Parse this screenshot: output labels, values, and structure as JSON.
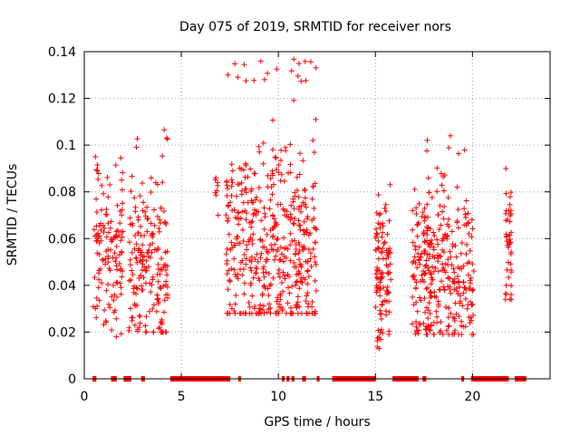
{
  "chart_data": {
    "type": "scatter",
    "title": "Day 075 of 2019, SRMTID for receiver nors",
    "xlabel": "GPS time / hours",
    "ylabel": "SRMTID / TECUs",
    "xlim": [
      0,
      24
    ],
    "ylim": [
      0,
      0.14
    ],
    "xticks": [
      0,
      5,
      10,
      15,
      20
    ],
    "xtick_labels": [
      "0",
      "5",
      "10",
      "15",
      "20"
    ],
    "yticks": [
      0,
      0.02,
      0.04,
      0.06,
      0.08,
      0.1,
      0.12,
      0.14
    ],
    "ytick_labels": [
      "0",
      "0.02",
      "0.04",
      "0.06",
      "0.08",
      "0.1",
      "0.12",
      "0.14"
    ],
    "grid": true,
    "marker": "+",
    "color": "#ff0000",
    "clusters": [
      {
        "t_start": 0.45,
        "t_end": 2.0,
        "mean": 0.055,
        "spread": 0.018,
        "min": 0.018,
        "max": 0.095,
        "count": 130
      },
      {
        "t_start": 2.3,
        "t_end": 4.3,
        "mean": 0.05,
        "spread": 0.018,
        "min": 0.02,
        "max": 0.108,
        "count": 190
      },
      {
        "t_start": 6.7,
        "t_end": 6.9,
        "mean": 0.08,
        "spread": 0.008,
        "min": 0.07,
        "max": 0.086,
        "count": 8
      },
      {
        "t_start": 7.3,
        "t_end": 12.0,
        "mean": 0.058,
        "spread": 0.02,
        "min": 0.028,
        "max": 0.137,
        "count": 480
      },
      {
        "t_start": 15.0,
        "t_end": 15.8,
        "mean": 0.045,
        "spread": 0.016,
        "min": 0.013,
        "max": 0.091,
        "count": 110
      },
      {
        "t_start": 16.9,
        "t_end": 20.1,
        "mean": 0.048,
        "spread": 0.016,
        "min": 0.019,
        "max": 0.105,
        "count": 330
      },
      {
        "t_start": 21.7,
        "t_end": 22.0,
        "mean": 0.06,
        "spread": 0.016,
        "min": 0.034,
        "max": 0.09,
        "count": 45
      }
    ],
    "zero_segments": [
      [
        0.45,
        0.6
      ],
      [
        1.4,
        1.65
      ],
      [
        2.05,
        2.4
      ],
      [
        2.95,
        3.1
      ],
      [
        4.45,
        7.5
      ],
      [
        7.95,
        8.05
      ],
      [
        10.2,
        10.3
      ],
      [
        10.45,
        10.55
      ],
      [
        10.7,
        10.8
      ],
      [
        11.25,
        11.4
      ],
      [
        12.0,
        12.1
      ],
      [
        12.8,
        15.0
      ],
      [
        15.9,
        17.2
      ],
      [
        17.45,
        17.6
      ],
      [
        19.45,
        19.55
      ],
      [
        19.95,
        21.85
      ],
      [
        22.2,
        22.75
      ]
    ]
  }
}
